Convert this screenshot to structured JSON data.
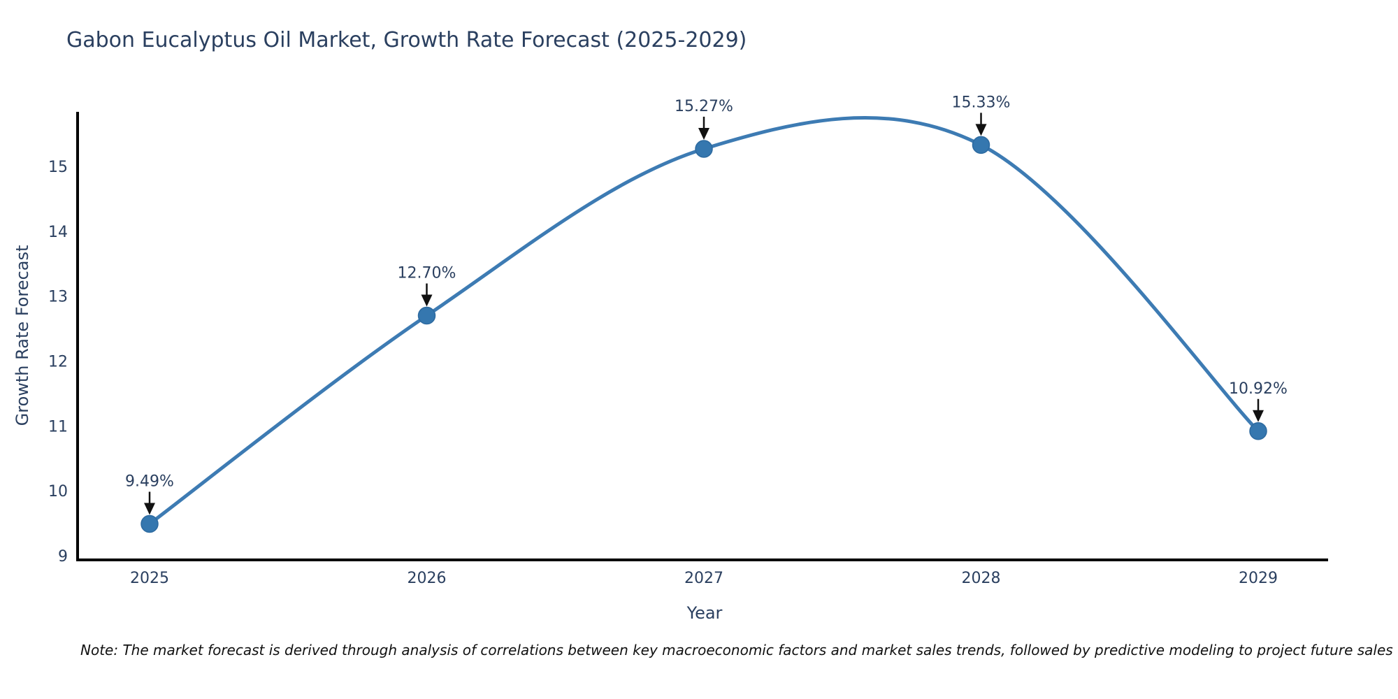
{
  "title": "Gabon Eucalyptus Oil Market, Growth Rate Forecast (2025-2029)",
  "note": "Note: The market forecast is derived through analysis of correlations between key macroeconomic factors and market sales trends, followed by predictive modeling to project future sales",
  "chart_data": {
    "type": "line",
    "title": "Gabon Eucalyptus Oil Market, Growth Rate Forecast (2025-2029)",
    "xlabel": "Year",
    "ylabel": "Growth Rate Forecast",
    "x": [
      2025,
      2026,
      2027,
      2028,
      2029
    ],
    "y": [
      9.49,
      12.7,
      15.27,
      15.33,
      10.92
    ],
    "point_labels": [
      "9.49%",
      "12.70%",
      "15.27%",
      "15.33%",
      "10.92%"
    ],
    "xticks": [
      "2025",
      "2026",
      "2027",
      "2028",
      "2029"
    ],
    "yticks": [
      9,
      10,
      11,
      12,
      13,
      14,
      15
    ],
    "ylim": [
      8.95,
      15.9
    ],
    "line_shape": "spline",
    "grid": false,
    "legend": "none",
    "annotations_have_arrows": true
  },
  "colors": {
    "line": "#3d7bb3",
    "marker_fill": "#3577af",
    "marker_stroke": "#2d6aa0",
    "axis_line": "#000000",
    "tick_text": "#2a3f5f",
    "title_text": "#2a3f5f",
    "annotation_text": "#2a3f5f",
    "arrow": "#111111",
    "background": "#ffffff"
  }
}
